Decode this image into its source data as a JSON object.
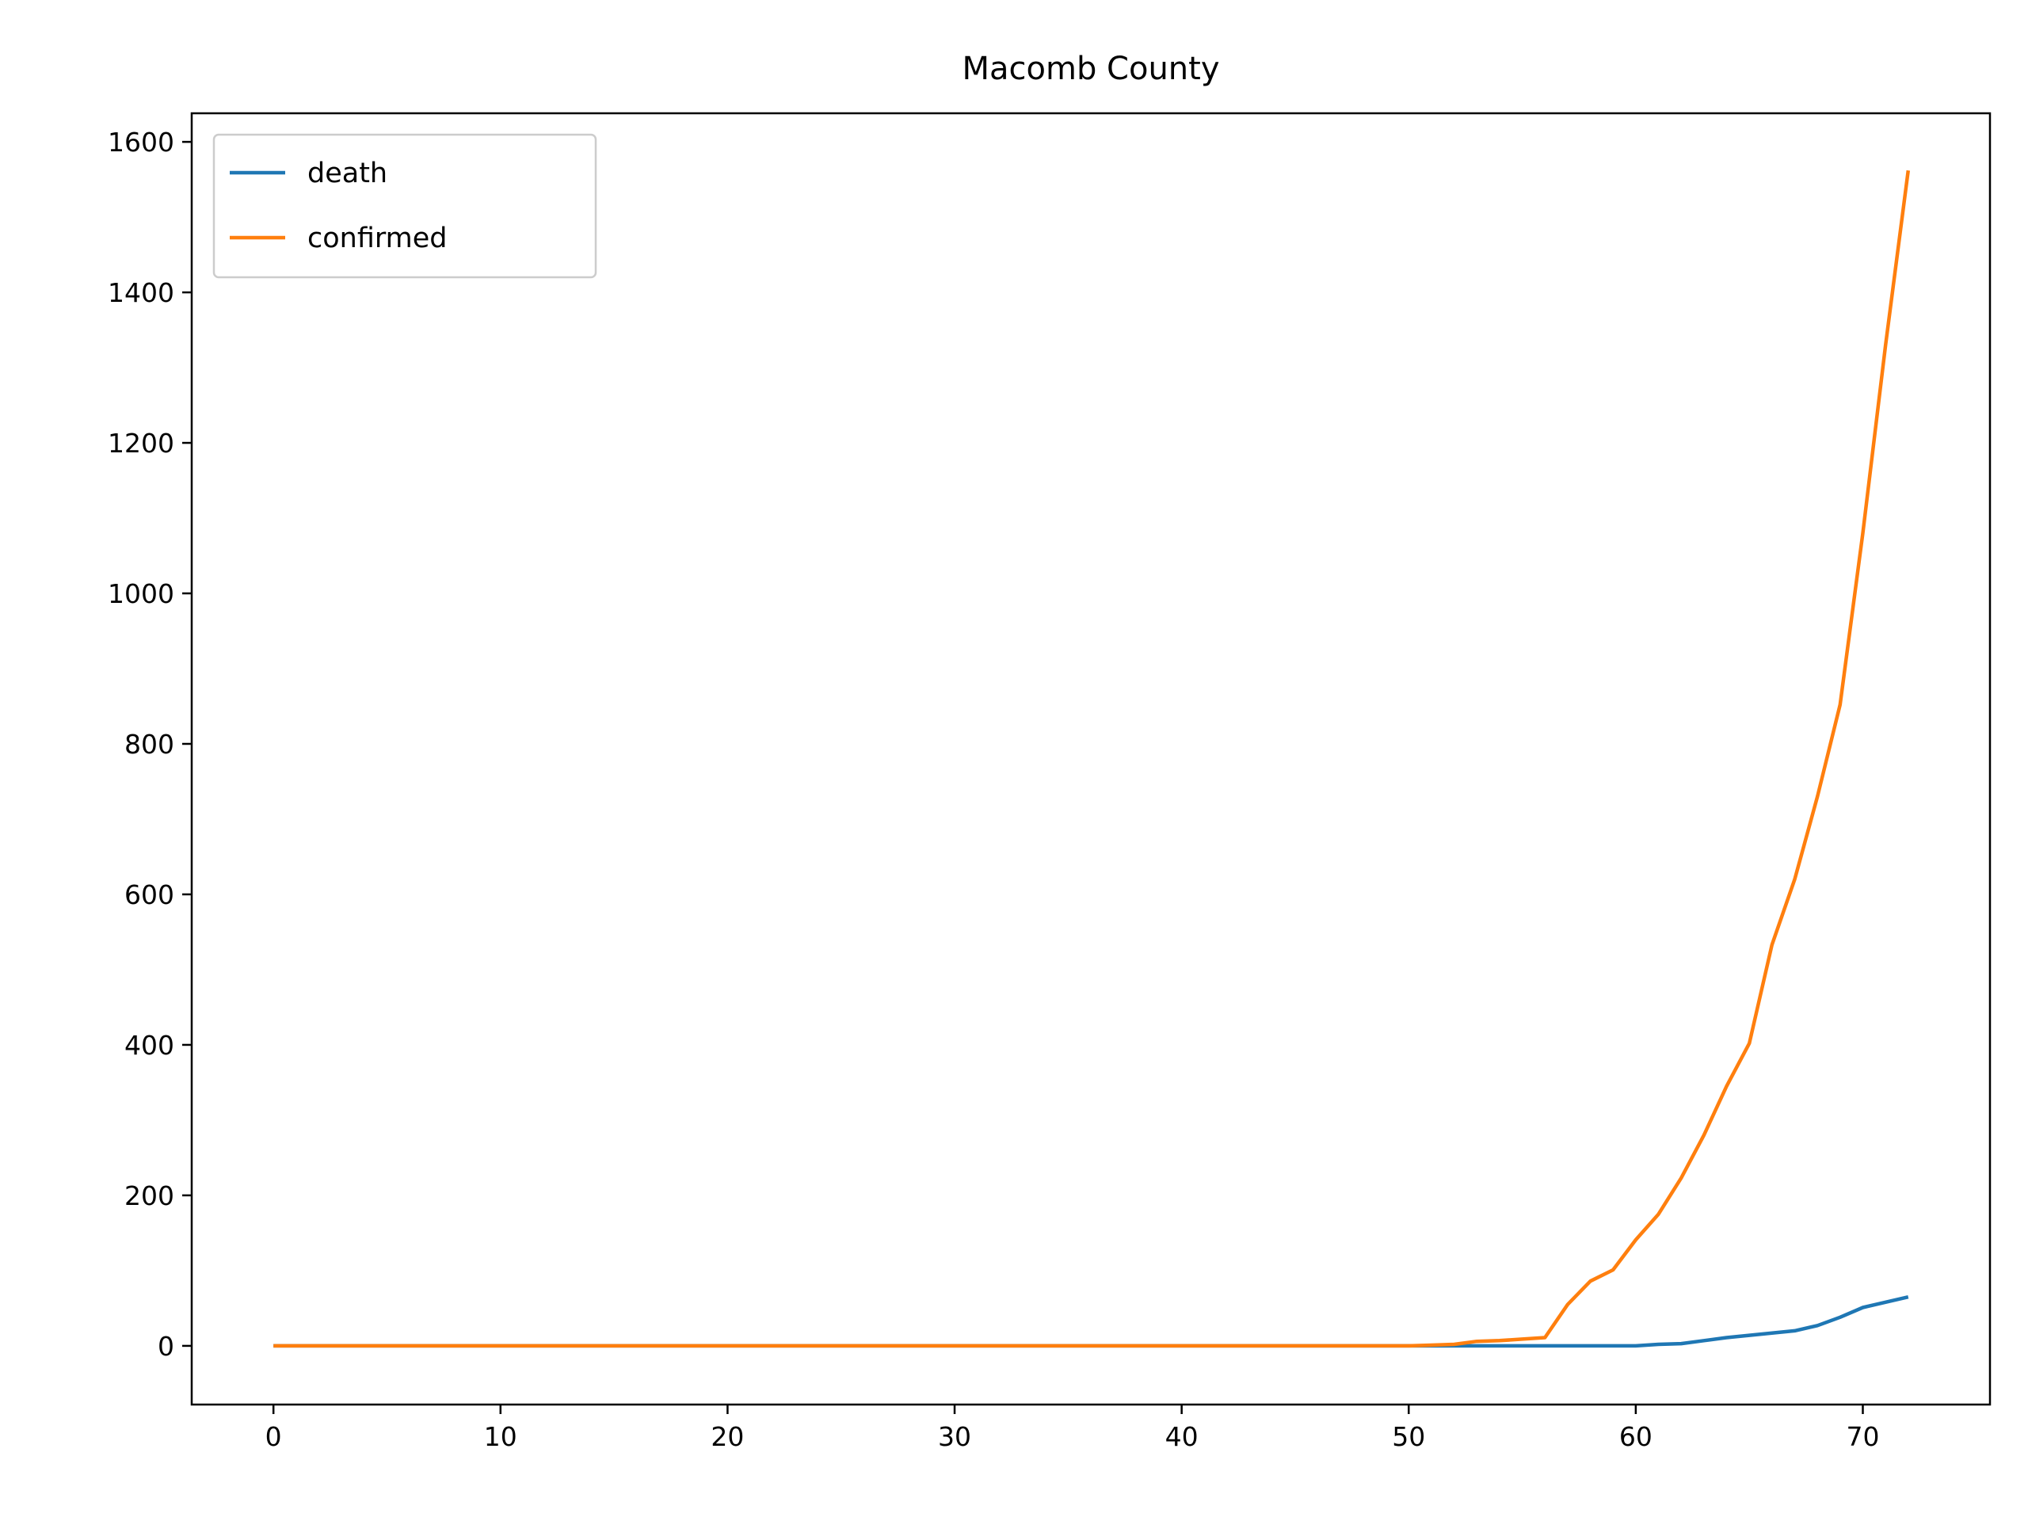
{
  "chart_data": {
    "type": "line",
    "title": "Macomb County",
    "xlabel": "",
    "ylabel": "",
    "xlim": [
      -3.6,
      75.6
    ],
    "ylim": [
      -78,
      1638
    ],
    "xticks": [
      0,
      10,
      20,
      30,
      40,
      50,
      60,
      70
    ],
    "yticks": [
      0,
      200,
      400,
      600,
      800,
      1000,
      1200,
      1400,
      1600
    ],
    "grid": false,
    "legend": "top-left",
    "x": [
      0,
      1,
      2,
      3,
      4,
      5,
      6,
      7,
      8,
      9,
      10,
      11,
      12,
      13,
      14,
      15,
      16,
      17,
      18,
      19,
      20,
      21,
      22,
      23,
      24,
      25,
      26,
      27,
      28,
      29,
      30,
      31,
      32,
      33,
      34,
      35,
      36,
      37,
      38,
      39,
      40,
      41,
      42,
      43,
      44,
      45,
      46,
      47,
      48,
      49,
      50,
      51,
      52,
      53,
      54,
      55,
      56,
      57,
      58,
      59,
      60,
      61,
      62,
      63,
      64,
      65,
      66,
      67,
      68,
      69,
      70,
      71,
      72
    ],
    "series": [
      {
        "name": "death",
        "color": "#1f77b4",
        "values": [
          0,
          0,
          0,
          0,
          0,
          0,
          0,
          0,
          0,
          0,
          0,
          0,
          0,
          0,
          0,
          0,
          0,
          0,
          0,
          0,
          0,
          0,
          0,
          0,
          0,
          0,
          0,
          0,
          0,
          0,
          0,
          0,
          0,
          0,
          0,
          0,
          0,
          0,
          0,
          0,
          0,
          0,
          0,
          0,
          0,
          0,
          0,
          0,
          0,
          0,
          0,
          0,
          0,
          0,
          0,
          0,
          0,
          0,
          0,
          0,
          0,
          2,
          3,
          7,
          11,
          14,
          17,
          20,
          27,
          38,
          51,
          58,
          65
        ]
      },
      {
        "name": "confirmed",
        "color": "#ff7f0e",
        "values": [
          0,
          0,
          0,
          0,
          0,
          0,
          0,
          0,
          0,
          0,
          0,
          0,
          0,
          0,
          0,
          0,
          0,
          0,
          0,
          0,
          0,
          0,
          0,
          0,
          0,
          0,
          0,
          0,
          0,
          0,
          0,
          0,
          0,
          0,
          0,
          0,
          0,
          0,
          0,
          0,
          0,
          0,
          0,
          0,
          0,
          0,
          0,
          0,
          0,
          0,
          0,
          1,
          2,
          6,
          7,
          9,
          11,
          55,
          86,
          101,
          141,
          175,
          223,
          280,
          345,
          402,
          533,
          620,
          730,
          852,
          1080,
          1330,
          1562
        ]
      }
    ]
  }
}
